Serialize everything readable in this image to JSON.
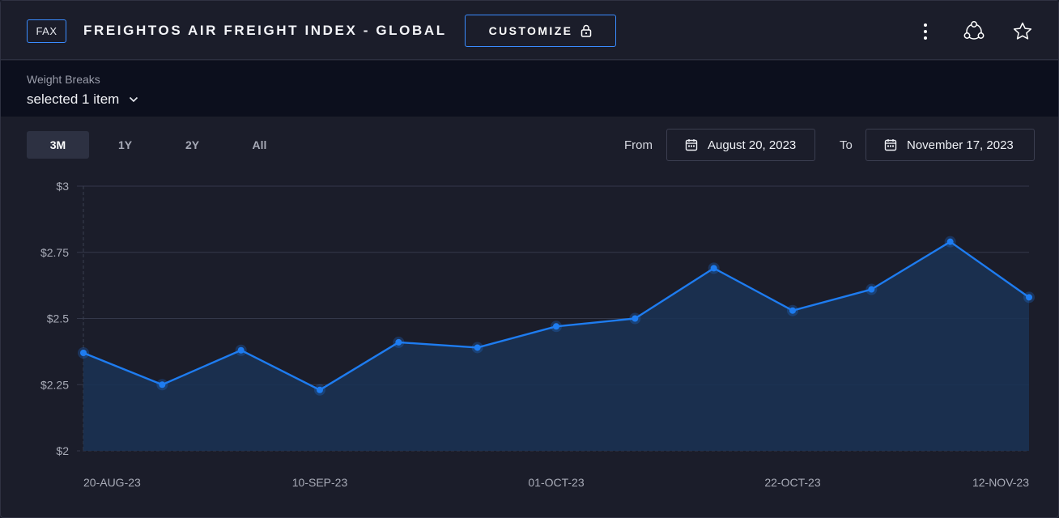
{
  "header": {
    "badge": "FAX",
    "title": "FREIGHTOS AIR FREIGHT INDEX - GLOBAL",
    "customize_label": "CUSTOMIZE",
    "icons": [
      "lock-icon",
      "more-vertical-icon",
      "share-network-icon",
      "star-icon"
    ]
  },
  "filter": {
    "label": "Weight Breaks",
    "value": "selected 1 item"
  },
  "range_tabs": [
    {
      "label": "3M",
      "active": true
    },
    {
      "label": "1Y",
      "active": false
    },
    {
      "label": "2Y",
      "active": false
    },
    {
      "label": "All",
      "active": false
    }
  ],
  "dates": {
    "from_label": "From",
    "from_value": "August 20, 2023",
    "to_label": "To",
    "to_value": "November 17, 2023"
  },
  "colors": {
    "accent": "#3a8cff",
    "line": "#1e7cf0",
    "area": "#1a3255",
    "grid": "#34384a"
  },
  "chart_data": {
    "type": "area",
    "x": [
      "2023-08-20",
      "2023-08-27",
      "2023-09-03",
      "2023-09-10",
      "2023-09-17",
      "2023-09-24",
      "2023-10-01",
      "2023-10-08",
      "2023-10-15",
      "2023-10-22",
      "2023-10-29",
      "2023-11-05",
      "2023-11-12"
    ],
    "series": [
      {
        "values": [
          2.37,
          2.25,
          2.38,
          2.23,
          2.41,
          2.39,
          2.47,
          2.5,
          2.69,
          2.53,
          2.61,
          2.79,
          2.58
        ]
      }
    ],
    "ylim": [
      2,
      3
    ],
    "yticks": [
      3,
      2.75,
      2.5,
      2.25,
      2
    ],
    "ytick_labels": [
      "$3",
      "$2.75",
      "$2.5",
      "$2.25",
      "$2"
    ],
    "xtick_labels": [
      "20-AUG-23",
      "10-SEP-23",
      "01-OCT-23",
      "22-OCT-23",
      "12-NOV-23"
    ],
    "xtick_indices": [
      0,
      3,
      6,
      9,
      12
    ],
    "grid": true
  }
}
